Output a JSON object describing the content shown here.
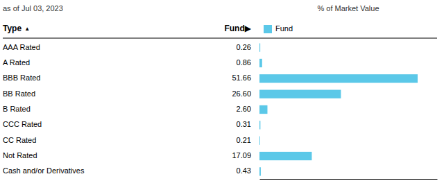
{
  "chart_data": {
    "type": "bar",
    "orientation": "horizontal",
    "title": "as of Jul 03, 2023",
    "xlabel": "% of Market Value",
    "ylabel": "Type",
    "annotations": [
      "▲",
      "Fund▶"
    ],
    "categories": [
      "AAA Rated",
      "A Rated",
      "BBB Rated",
      "BB Rated",
      "B Rated",
      "CCC Rated",
      "CC Rated",
      "Not Rated",
      "Cash and/or Derivatives"
    ],
    "series": [
      {
        "name": "Fund",
        "color": "#5bc8e8",
        "values": [
          0.26,
          0.86,
          51.66,
          26.6,
          2.6,
          0.31,
          0.21,
          17.09,
          0.43
        ],
        "value_labels": [
          "0.26",
          "0.86",
          "51.66",
          "26.60",
          "2.60",
          "0.31",
          "0.21",
          "17.09",
          "0.43"
        ]
      }
    ],
    "xlim": [
      0,
      58
    ],
    "data_labels": true,
    "tick_labels": false,
    "legend": "top",
    "grid": false
  }
}
